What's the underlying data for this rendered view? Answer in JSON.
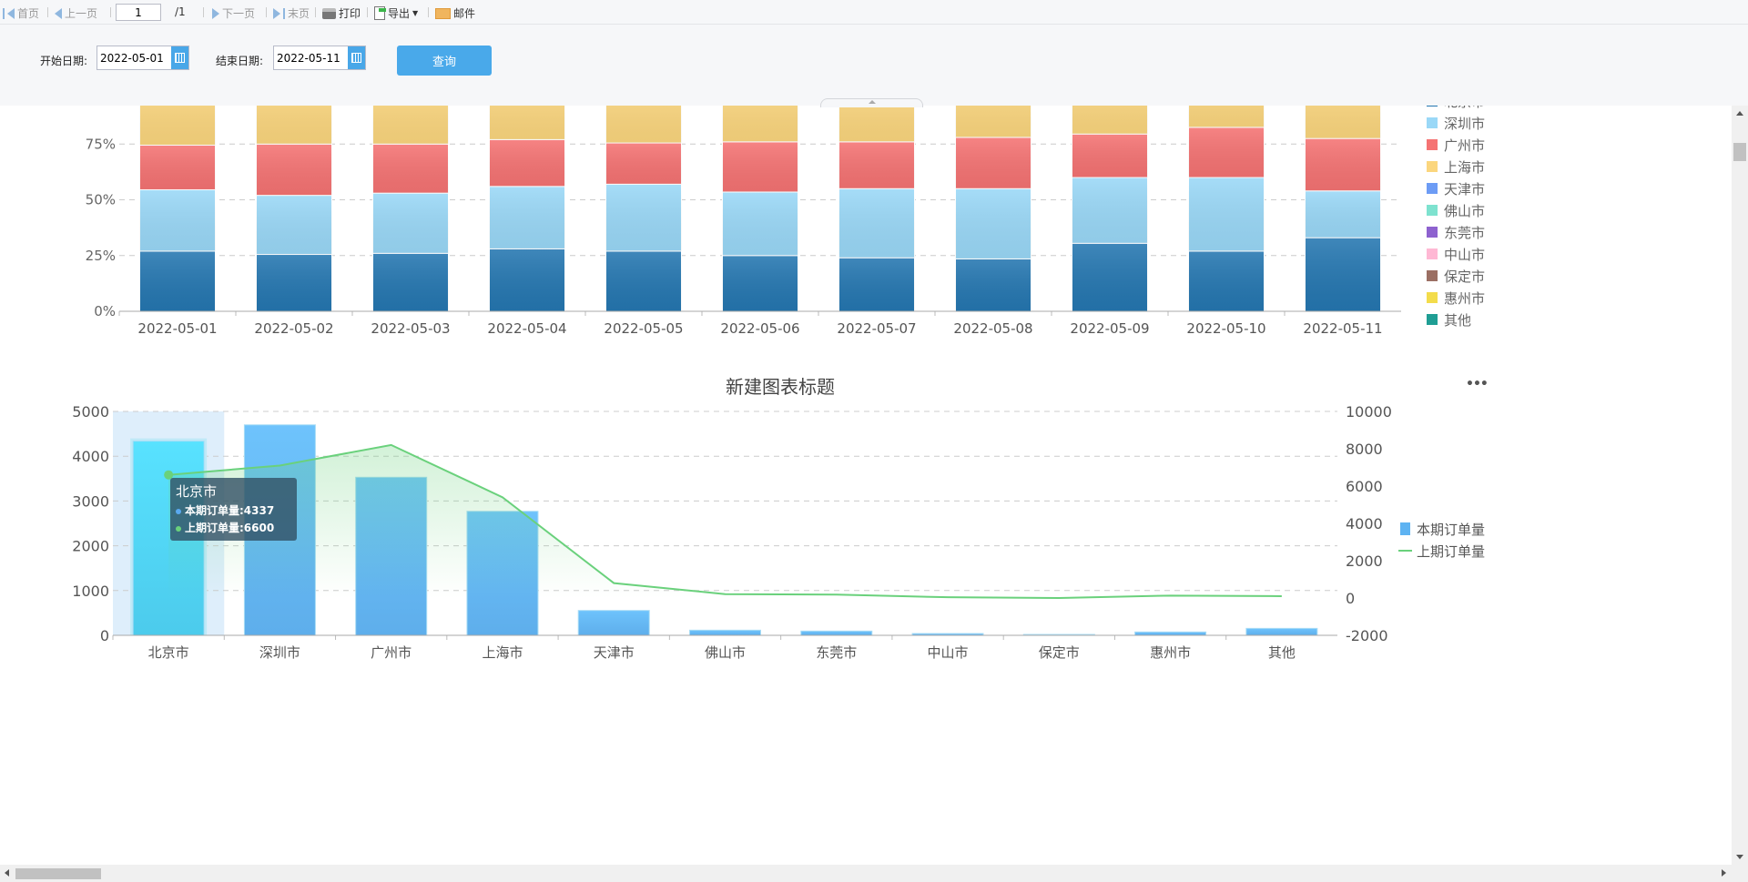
{
  "toolbar": {
    "first": "首页",
    "prev": "上一页",
    "page": "1",
    "total": "/1",
    "next": "下一页",
    "last": "末页",
    "print": "打印",
    "export": "导出",
    "mail": "邮件"
  },
  "filters": {
    "start_label": "开始日期:",
    "start_value": "2022-05-01",
    "end_label": "结束日期:",
    "end_value": "2022-05-11",
    "query": "查询"
  },
  "colors": {
    "accent": "#49a9ea"
  },
  "tooltip": {
    "title": "北京市",
    "rows": [
      {
        "label": "本期订单量:4337",
        "color": "#5aa9f0"
      },
      {
        "label": "上期订单量:6600",
        "color": "#6ad17c"
      }
    ]
  },
  "chart_data": [
    {
      "type": "bar",
      "stacked": "percent",
      "title": "",
      "categories": [
        "2022-05-01",
        "2022-05-02",
        "2022-05-03",
        "2022-05-04",
        "2022-05-05",
        "2022-05-06",
        "2022-05-07",
        "2022-05-08",
        "2022-05-09",
        "2022-05-10",
        "2022-05-11"
      ],
      "ylim": [
        0,
        100
      ],
      "yticks": [
        "0%",
        "25%",
        "50%",
        "75%"
      ],
      "grid": true,
      "legend": "right",
      "series": [
        {
          "name": "北京市",
          "color": "#2577b1",
          "values": [
            27,
            25.5,
            26,
            28,
            27,
            25,
            24,
            23.5,
            30.5,
            27,
            33
          ]
        },
        {
          "name": "深圳市",
          "color": "#9ad8f7",
          "values": [
            27.5,
            26.5,
            27,
            28,
            30,
            28.5,
            31,
            31.5,
            29.5,
            33,
            21
          ]
        },
        {
          "name": "广州市",
          "color": "#f57373",
          "values": [
            20,
            23,
            22,
            21,
            18.5,
            22.5,
            21,
            23,
            19.5,
            22.5,
            23.5
          ]
        },
        {
          "name": "上海市",
          "color": "#fbd67e",
          "values": [
            25.5,
            25,
            25,
            23,
            24.5,
            24,
            24,
            22,
            20.5,
            17.5,
            22.5
          ]
        },
        {
          "name": "天津市",
          "color": "#6d9cf5",
          "values": [
            0,
            0,
            0,
            0,
            0,
            0,
            0,
            0,
            0,
            0,
            0
          ]
        },
        {
          "name": "佛山市",
          "color": "#7ee2cf",
          "values": [
            0,
            0,
            0,
            0,
            0,
            0,
            0,
            0,
            0,
            0,
            0
          ]
        },
        {
          "name": "东莞市",
          "color": "#8e62cf",
          "values": [
            0,
            0,
            0,
            0,
            0,
            0,
            0,
            0,
            0,
            0,
            0
          ]
        },
        {
          "name": "中山市",
          "color": "#ffb8d4",
          "values": [
            0,
            0,
            0,
            0,
            0,
            0,
            0,
            0,
            0,
            0,
            0
          ]
        },
        {
          "name": "保定市",
          "color": "#9b6f63",
          "values": [
            0,
            0,
            0,
            0,
            0,
            0,
            0,
            0,
            0,
            0,
            0
          ]
        },
        {
          "name": "惠州市",
          "color": "#f3dc4b",
          "values": [
            0,
            0,
            0,
            0,
            0,
            0,
            0,
            0,
            0,
            0,
            0
          ]
        },
        {
          "name": "其他",
          "color": "#1f9e94",
          "values": [
            0,
            0,
            0,
            0,
            0,
            0,
            0,
            0,
            0,
            0,
            0
          ]
        }
      ]
    },
    {
      "type": "bar+line",
      "title": "新建图表标题",
      "more": "•••",
      "categories": [
        "北京市",
        "深圳市",
        "广州市",
        "上海市",
        "天津市",
        "佛山市",
        "东莞市",
        "中山市",
        "保定市",
        "惠州市",
        "其他"
      ],
      "ylim": [
        0,
        5000
      ],
      "yticks": [
        "0",
        "1000",
        "2000",
        "3000",
        "4000",
        "5000"
      ],
      "y2lim": [
        -2000,
        10000
      ],
      "y2ticks": [
        "-2000",
        "0",
        "2000",
        "4000",
        "6000",
        "8000",
        "10000"
      ],
      "grid": true,
      "legend": "right",
      "highlighted": "北京市",
      "series": [
        {
          "name": "本期订单量",
          "type": "bar",
          "axis": "left",
          "color": "#5eb3f2",
          "values": [
            4337,
            4700,
            3530,
            2770,
            555,
            115,
            95,
            40,
            20,
            75,
            155
          ]
        },
        {
          "name": "上期订单量",
          "type": "line",
          "axis": "right",
          "color": "#6ad17c",
          "values": [
            6600,
            7100,
            8200,
            5400,
            800,
            210,
            180,
            40,
            0,
            130,
            100
          ]
        }
      ]
    }
  ]
}
